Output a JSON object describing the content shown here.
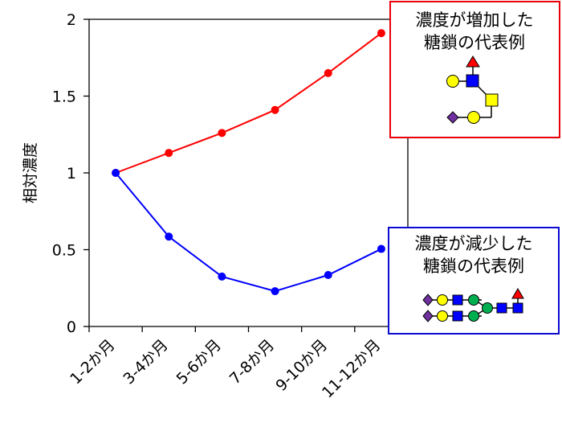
{
  "chart_data": {
    "type": "line",
    "categories": [
      "1-2か月",
      "3-4か月",
      "5-6か月",
      "7-8か月",
      "9-10か月",
      "11-12か月"
    ],
    "series": [
      {
        "values": [
          1.0,
          1.13,
          1.26,
          1.41,
          1.65,
          1.91
        ],
        "color": "#ff0000"
      },
      {
        "values": [
          1.0,
          0.585,
          0.325,
          0.23,
          0.335,
          0.505
        ],
        "color": "#0000ff"
      }
    ],
    "ylabel": "相対濃度",
    "ylim": [
      0,
      2
    ],
    "yticks": [
      0,
      0.5,
      1,
      1.5,
      2
    ],
    "ytick_labels": [
      "0",
      "0.5",
      "1",
      "1.5",
      "2"
    ],
    "grid": false,
    "annotations": [
      {
        "lines": [
          "濃度が増加した",
          "糖鎖の代表例"
        ],
        "border_color": "#e8000b"
      },
      {
        "lines": [
          "濃度が減少した",
          "糖鎖の代表例"
        ],
        "border_color": "#0a0ad0"
      }
    ]
  }
}
